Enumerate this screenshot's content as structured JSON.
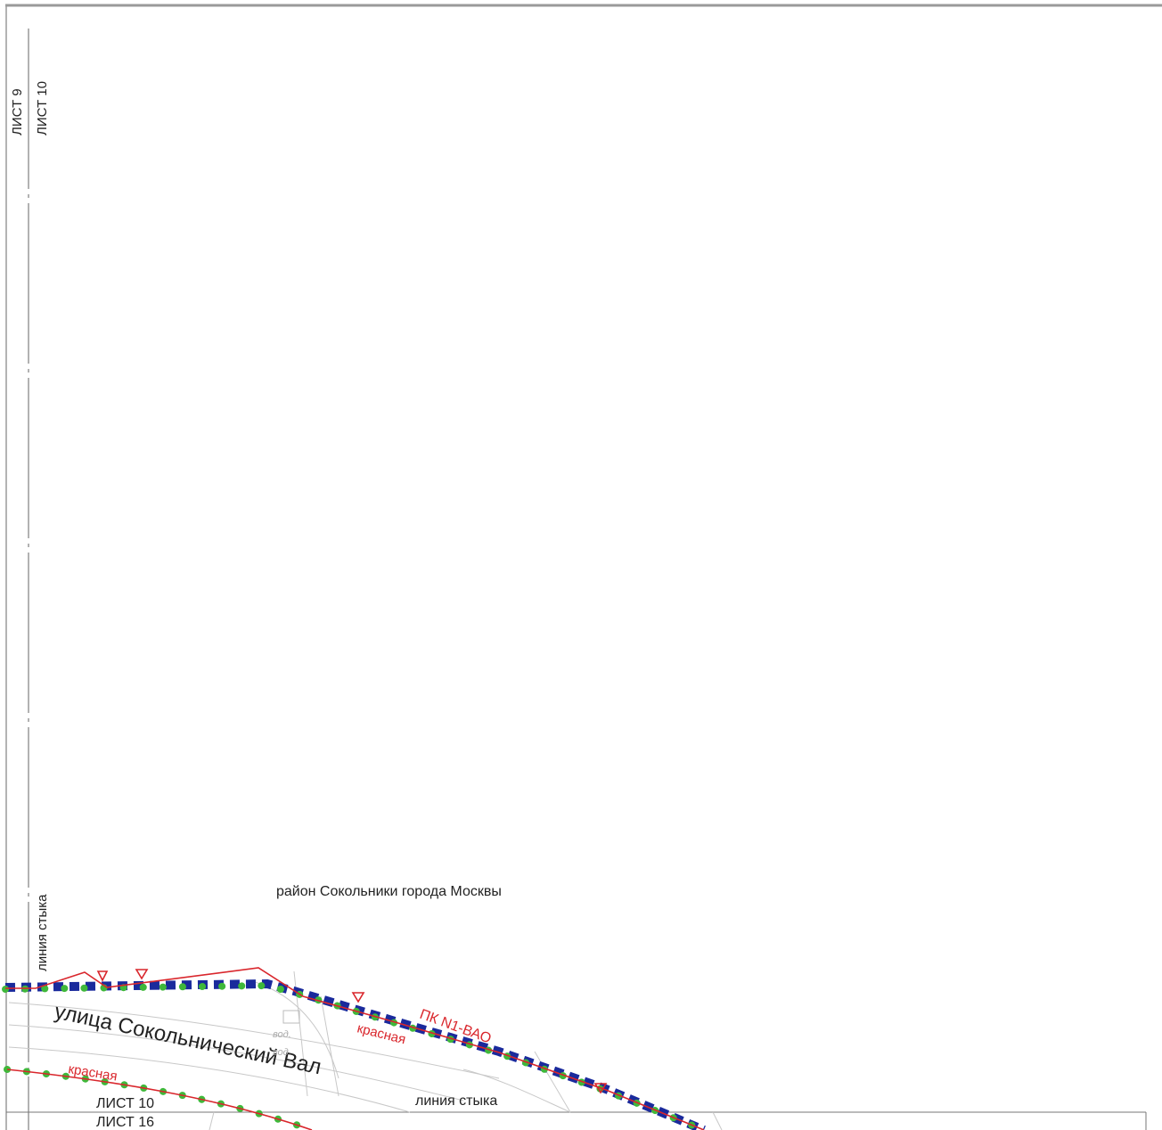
{
  "sheets": {
    "sheet_9": "ЛИСТ 9",
    "sheet_10_left": "ЛИСТ 10",
    "sheet_10_bottom": "ЛИСТ 10",
    "sheet_16": "ЛИСТ 16"
  },
  "labels": {
    "joint_line_vertical": "линия стыка",
    "joint_line_bottom": "линия стыка",
    "district": "район Сокольники города Москвы",
    "street": "улица Сокольнический Вал",
    "red_line_1": "красная",
    "red_line_2": "красная",
    "picket": "ПК N1-ВАО",
    "note_1": "вод.",
    "note_2": "вод."
  },
  "colors": {
    "red_line": "#d9262c",
    "green_line": "#3fb83a",
    "blue_line": "#1a2a9c",
    "frame": "#9a9a9a",
    "map_lines": "#c8c8c8",
    "text": "#222222"
  },
  "legend_icons": [
    "triangle-marker-icon"
  ]
}
